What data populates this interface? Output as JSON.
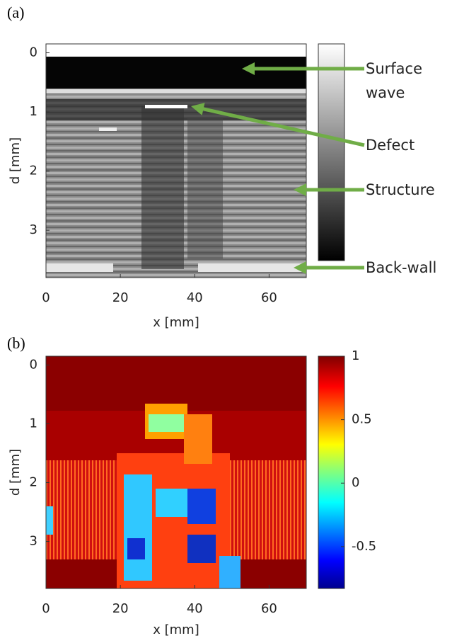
{
  "chart_data": [
    {
      "type": "heatmap",
      "panel_label": "(a)",
      "xlabel": "x [mm]",
      "ylabel": "d [mm]",
      "xlim": [
        0,
        70
      ],
      "xticks": [
        0,
        20,
        40,
        60
      ],
      "ylim": [
        3.8,
        -0.15
      ],
      "yticks": [
        0,
        1,
        2,
        3
      ],
      "colormap": "gray",
      "annotations": [
        "Surface wave",
        "Defect",
        "Structure",
        "Back-wall"
      ],
      "annotation_color": "#70ad47"
    },
    {
      "type": "heatmap",
      "panel_label": "(b)",
      "xlabel": "x [mm]",
      "ylabel": "d [mm]",
      "xlim": [
        0,
        70
      ],
      "xticks": [
        0,
        20,
        40,
        60
      ],
      "ylim": [
        3.8,
        -0.15
      ],
      "yticks": [
        0,
        1,
        2,
        3
      ],
      "colormap": "jet",
      "clim": [
        -0.83,
        1
      ],
      "cticks": [
        1,
        0.5,
        0,
        -0.5
      ]
    }
  ]
}
